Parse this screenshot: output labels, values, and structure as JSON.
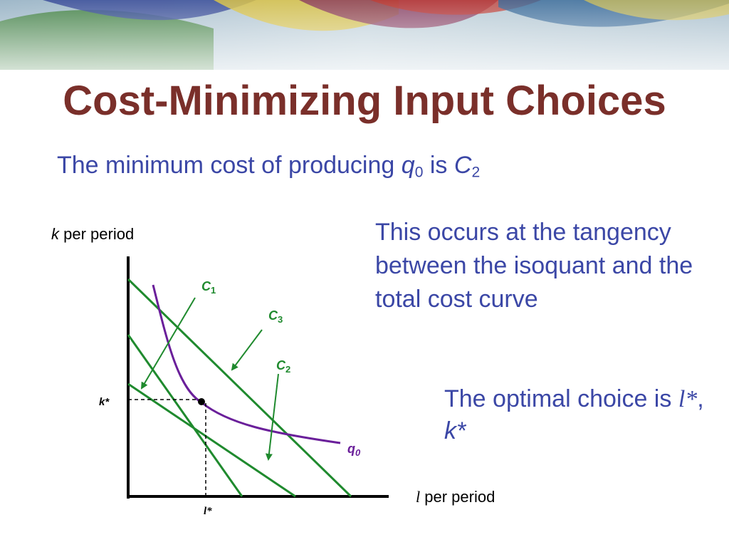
{
  "colors": {
    "title": "#7a2f2a",
    "body_text": "#3b47a6",
    "cost_lines": "#1f8a2e",
    "isoquant": "#6a1f9a",
    "axes": "#000000"
  },
  "title": "Cost-Minimizing Input Choices",
  "subtitle": {
    "text": "The minimum cost of producing",
    "q_var": "q",
    "q_sub": "0",
    "is_word": "is",
    "c_var": "C",
    "c_sub": "2"
  },
  "note_tangency": "This occurs at the tangency between the isoquant and the total cost curve",
  "note_optimal": {
    "prefix": "The optimal choice is",
    "l_star": "l*",
    "comma": ",",
    "k_star": "k*"
  },
  "diagram": {
    "y_axis_var": "k",
    "y_axis_suffix": "per period",
    "x_axis_var": "l",
    "x_axis_suffix": "per period",
    "k_star_label": "k*",
    "l_star_label": "l*",
    "cost_labels": [
      {
        "var": "C",
        "sub": "1"
      },
      {
        "var": "C",
        "sub": "3"
      },
      {
        "var": "C",
        "sub": "2"
      }
    ],
    "isoquant_label": {
      "var": "q",
      "sub": "0"
    }
  }
}
